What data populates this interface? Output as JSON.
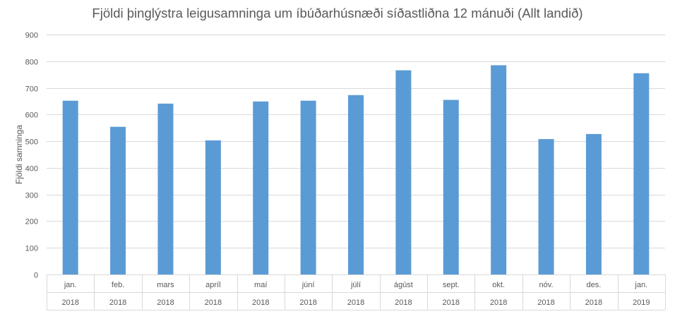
{
  "chart_data": {
    "type": "bar",
    "title": "Fjöldi þinglýstra leigusamninga um íbúðarhúsnæði síðastliðna 12 mánuði (Allt landið)",
    "xlabel": "",
    "ylabel": "Fjöldi samninga",
    "ylim": [
      0,
      900
    ],
    "yticks": [
      "0",
      "100",
      "200",
      "300",
      "400",
      "500",
      "600",
      "700",
      "800",
      "900"
    ],
    "grid": true,
    "categories": [
      {
        "month": "jan.",
        "year": "2018"
      },
      {
        "month": "feb.",
        "year": "2018"
      },
      {
        "month": "mars",
        "year": "2018"
      },
      {
        "month": "apríl",
        "year": "2018"
      },
      {
        "month": "maí",
        "year": "2018"
      },
      {
        "month": "júní",
        "year": "2018"
      },
      {
        "month": "júlí",
        "year": "2018"
      },
      {
        "month": "ágúst",
        "year": "2018"
      },
      {
        "month": "sept.",
        "year": "2018"
      },
      {
        "month": "okt.",
        "year": "2018"
      },
      {
        "month": "nóv.",
        "year": "2018"
      },
      {
        "month": "des.",
        "year": "2018"
      },
      {
        "month": "jan.",
        "year": "2019"
      }
    ],
    "values": [
      652,
      554,
      641,
      503,
      649,
      652,
      673,
      766,
      655,
      785,
      508,
      527,
      755
    ],
    "bar_color": "#5B9BD5",
    "grid_color": "#D9D9D9"
  }
}
